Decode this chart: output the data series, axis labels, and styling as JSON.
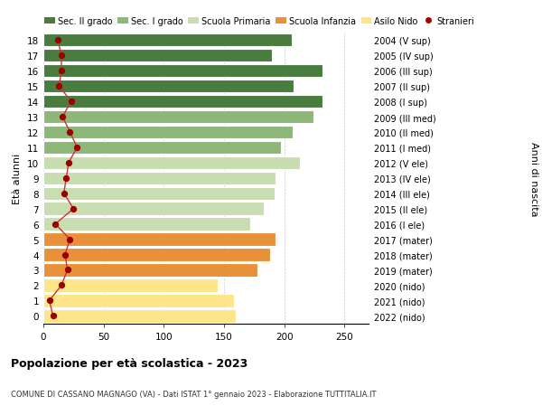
{
  "ages": [
    0,
    1,
    2,
    3,
    4,
    5,
    6,
    7,
    8,
    9,
    10,
    11,
    12,
    13,
    14,
    15,
    16,
    17,
    18
  ],
  "bar_values": [
    160,
    158,
    145,
    178,
    188,
    193,
    172,
    183,
    192,
    193,
    213,
    197,
    207,
    224,
    232,
    208,
    232,
    190,
    206
  ],
  "right_labels": [
    "2022 (nido)",
    "2021 (nido)",
    "2020 (nido)",
    "2019 (mater)",
    "2018 (mater)",
    "2017 (mater)",
    "2016 (I ele)",
    "2015 (II ele)",
    "2014 (III ele)",
    "2013 (IV ele)",
    "2012 (V ele)",
    "2011 (I med)",
    "2010 (II med)",
    "2009 (III med)",
    "2008 (I sup)",
    "2007 (II sup)",
    "2006 (III sup)",
    "2005 (IV sup)",
    "2004 (V sup)"
  ],
  "stranieri_values": [
    8,
    5,
    15,
    20,
    18,
    22,
    10,
    25,
    17,
    19,
    21,
    28,
    22,
    16,
    23,
    13,
    15,
    15,
    12
  ],
  "bar_colors": [
    "#fde68a",
    "#fde68a",
    "#fde68a",
    "#e8913a",
    "#e8913a",
    "#e8913a",
    "#c8ddb0",
    "#c8ddb0",
    "#c8ddb0",
    "#c8ddb0",
    "#c8ddb0",
    "#8db87a",
    "#8db87a",
    "#8db87a",
    "#4a7c3f",
    "#4a7c3f",
    "#4a7c3f",
    "#4a7c3f",
    "#4a7c3f"
  ],
  "legend_labels": [
    "Sec. II grado",
    "Sec. I grado",
    "Scuola Primaria",
    "Scuola Infanzia",
    "Asilo Nido",
    "Stranieri"
  ],
  "legend_colors": [
    "#4a7c3f",
    "#8db87a",
    "#c8ddb0",
    "#e8913a",
    "#fde68a",
    "#aa0000"
  ],
  "title": "Popolazione per età scolastica - 2023",
  "subtitle": "COMUNE DI CASSANO MAGNAGO (VA) - Dati ISTAT 1° gennaio 2023 - Elaborazione TUTTITALIA.IT",
  "ylabel_left": "Età alunni",
  "ylabel_right": "Anni di nascita",
  "xlim": [
    0,
    270
  ],
  "xticks": [
    0,
    50,
    100,
    150,
    200,
    250
  ],
  "background_color": "#ffffff",
  "grid_color": "#cccccc",
  "stranieri_color": "#990000",
  "stranieri_line_color": "#cc3333"
}
